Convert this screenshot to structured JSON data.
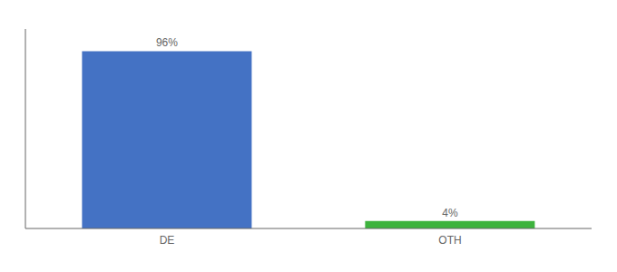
{
  "chart_data": {
    "type": "bar",
    "categories": [
      "DE",
      "OTH"
    ],
    "values": [
      96,
      4
    ],
    "value_labels": [
      "96%",
      "4%"
    ],
    "colors": [
      "#4472c4",
      "#3db33d"
    ],
    "data_labels": true,
    "ylim": [
      0,
      108
    ],
    "tick_labels": "x"
  }
}
